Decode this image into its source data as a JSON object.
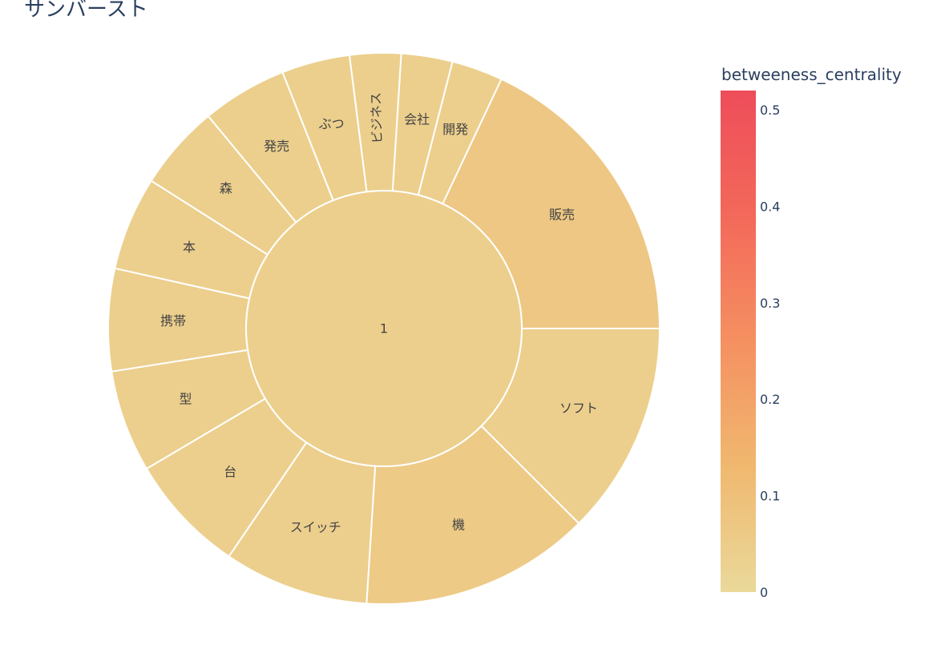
{
  "chart_data": {
    "type": "sunburst",
    "title": "サンバースト",
    "root": {
      "label": "1",
      "color_value": 0.04
    },
    "children": [
      {
        "label": "販売",
        "value": 18,
        "color_value": 0.07
      },
      {
        "label": "開発",
        "value": 3,
        "color_value": 0.04
      },
      {
        "label": "会社",
        "value": 3,
        "color_value": 0.04
      },
      {
        "label": "ビジネス",
        "value": 3,
        "color_value": 0.04
      },
      {
        "label": "ぶつ",
        "value": 4,
        "color_value": 0.04
      },
      {
        "label": "発売",
        "value": 5,
        "color_value": 0.04
      },
      {
        "label": "森",
        "value": 5,
        "color_value": 0.04
      },
      {
        "label": "本",
        "value": 5.5,
        "color_value": 0.04
      },
      {
        "label": "携帯",
        "value": 6,
        "color_value": 0.04
      },
      {
        "label": "型",
        "value": 6,
        "color_value": 0.04
      },
      {
        "label": "台",
        "value": 7,
        "color_value": 0.04
      },
      {
        "label": "スイッチ",
        "value": 8.5,
        "color_value": 0.04
      },
      {
        "label": "機",
        "value": 13.5,
        "color_value": 0.06
      },
      {
        "label": "ソフト",
        "value": 12.5,
        "color_value": 0.04
      }
    ],
    "colorbar": {
      "title": "betweeness_centrality",
      "range": [
        0,
        0.52
      ],
      "ticks": [
        0,
        0.1,
        0.2,
        0.3,
        0.4,
        0.5
      ],
      "tick_labels": [
        "0",
        "0.1",
        "0.2",
        "0.3",
        "0.4",
        "0.5"
      ],
      "colorscale": [
        "#ead99a",
        "#f0b86f",
        "#f59061",
        "#f3695a",
        "#ee4d5a"
      ]
    }
  }
}
